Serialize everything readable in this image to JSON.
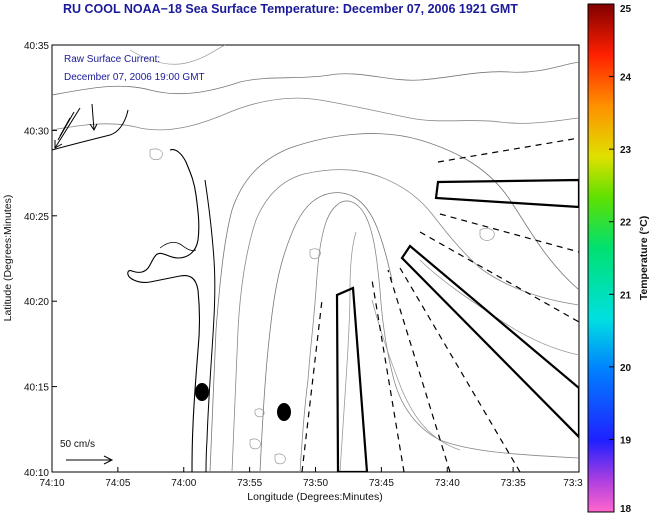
{
  "title": "RU COOL  NOAA−18  Sea Surface Temperature:  December 07, 2006 1921 GMT",
  "current_note": {
    "line1": "Raw Surface Current:",
    "line2": "December 07, 2006 19:00 GMT"
  },
  "scale_label": "50 cm/s",
  "axes": {
    "x_label": "Longitude (Degrees:Minutes)",
    "y_label": "Latitude (Degrees:Minutes)",
    "x_ticks": [
      "74:10",
      "74:05",
      "74:00",
      "73:55",
      "73:50",
      "73:45",
      "73:40",
      "73:35",
      "73:3"
    ],
    "y_ticks": [
      "40:35",
      "40:30",
      "40:25",
      "40:20",
      "40:15",
      "40:10"
    ]
  },
  "colorbar": {
    "label": "Temperature (°C)",
    "ticks": [
      "25",
      "24",
      "23",
      "22",
      "21",
      "20",
      "19",
      "18"
    ],
    "min": 18,
    "max": 25
  }
}
